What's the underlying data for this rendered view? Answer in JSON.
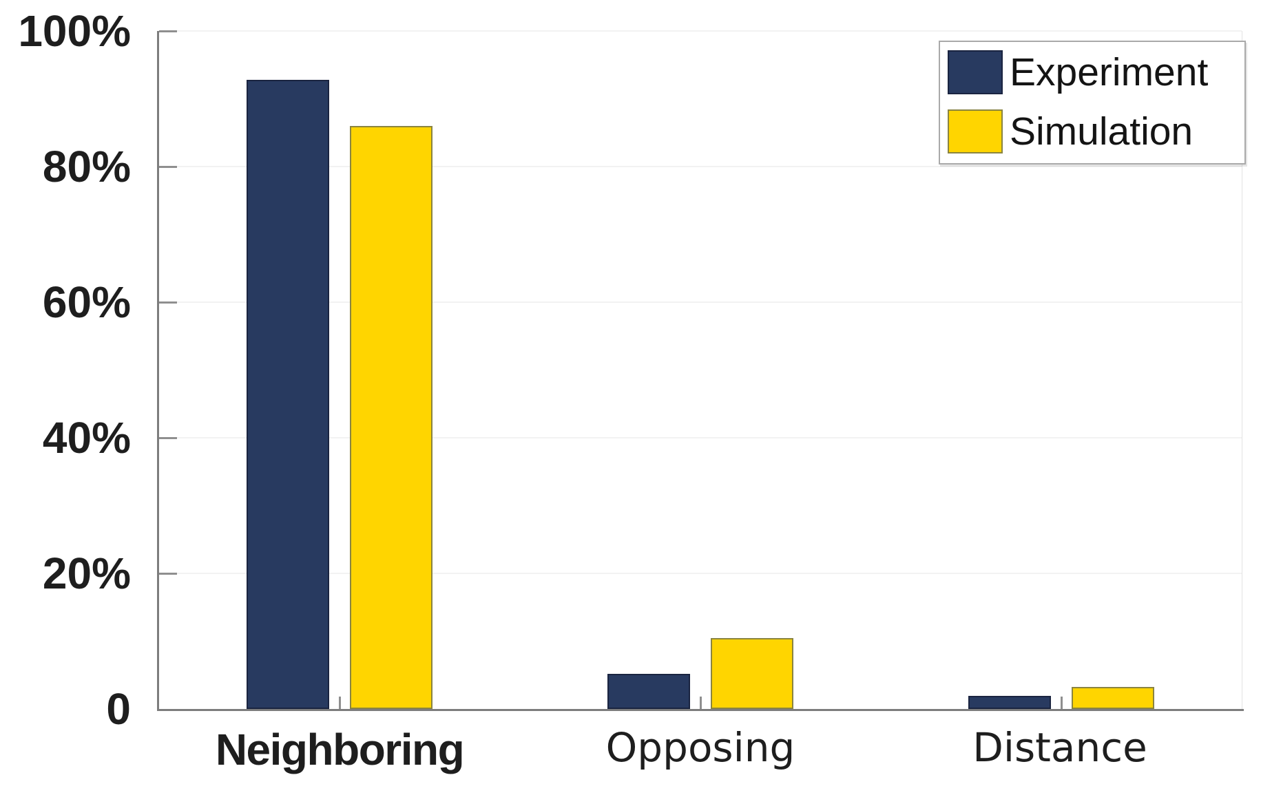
{
  "chart_data": {
    "type": "bar",
    "title": "",
    "xlabel": "",
    "ylabel": "",
    "categories": [
      "Neighboring",
      "Opposing",
      "Distance"
    ],
    "series": [
      {
        "name": "Experiment",
        "color": "#283A60",
        "edge_color": "#1a2440",
        "values": [
          92.8,
          5.2,
          1.9
        ]
      },
      {
        "name": "Simulation",
        "color": "#FFD500",
        "edge_color": "#8a8440",
        "values": [
          86.0,
          10.5,
          3.2
        ]
      }
    ],
    "ylim": [
      0,
      100
    ],
    "yticks": {
      "values": [
        0,
        20,
        40,
        60,
        80,
        100
      ],
      "labels": [
        "0",
        "20%",
        "40%",
        "60%",
        "80%",
        "100%"
      ]
    },
    "grid": true,
    "legend_position": "top-right",
    "colors": {
      "axis": "#7d7d7d",
      "tick": "#8f8f8f",
      "gridline": "#f2f2f2",
      "text": "#1e1e1e",
      "background": "#ffffff"
    }
  }
}
